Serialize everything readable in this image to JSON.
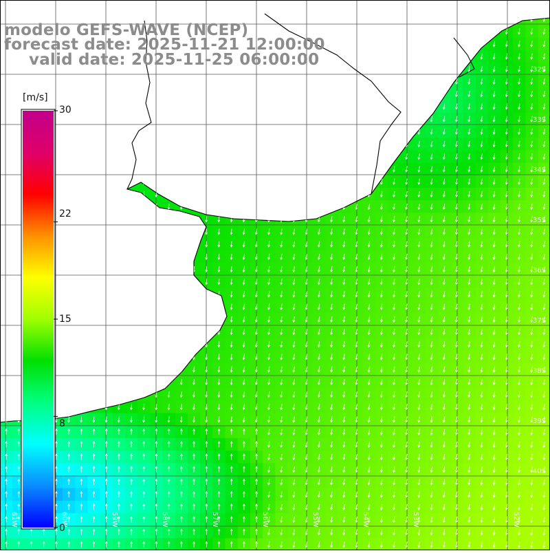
{
  "title": {
    "model": "modelo GEFS-WAVE (NCEP)",
    "forecast": "forecast date: 2025-11-21 12:00:00",
    "valid": "valid date: 2025-11-25 06:00:00"
  },
  "colorbar": {
    "unit": "[m/s]",
    "min": 0,
    "max": 30,
    "ticks": [
      "30",
      "22",
      "15",
      "8",
      "0"
    ],
    "tick_values": [
      30,
      22,
      15,
      8,
      0
    ],
    "colors": [
      "#0000ff",
      "#0a8cff",
      "#00ffff",
      "#00ff80",
      "#00e000",
      "#a0ff00",
      "#ffff00",
      "#ff9000",
      "#ff0000",
      "#e0006a",
      "#c0008a"
    ]
  },
  "map": {
    "lat_labels": [
      "32S",
      "33S",
      "34S",
      "35S",
      "36S",
      "37S",
      "38S",
      "39S",
      "40S"
    ],
    "lon_labels": [
      "61W",
      "60W",
      "59W",
      "58W",
      "57W",
      "56W",
      "55W",
      "54W",
      "53W",
      "52W"
    ],
    "land_color": "#ffffff",
    "grid_color": "#555555",
    "arrow_color": "#ffffff"
  }
}
